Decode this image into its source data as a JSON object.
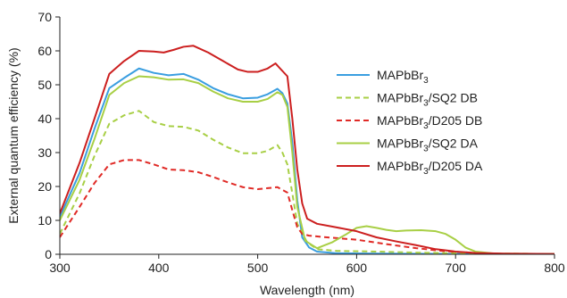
{
  "chart_data": {
    "type": "line",
    "title": "",
    "xlabel": "Wavelength (nm)",
    "ylabel": "External quantum efficiency (%)",
    "xlim": [
      300,
      800
    ],
    "ylim": [
      0,
      70
    ],
    "x_ticks": [
      "300",
      "400",
      "500",
      "600",
      "700",
      "800"
    ],
    "y_ticks": [
      "0",
      "10",
      "20",
      "30",
      "40",
      "50",
      "60",
      "70"
    ],
    "grid": false,
    "legend_position": "right",
    "series": [
      {
        "name_parts": [
          "MAPbBr",
          "3",
          ""
        ],
        "color": "#3a9ee0",
        "dash": "solid",
        "points": [
          [
            300,
            11
          ],
          [
            320,
            24
          ],
          [
            335,
            37
          ],
          [
            350,
            49
          ],
          [
            365,
            52
          ],
          [
            380,
            54.8
          ],
          [
            395,
            53.5
          ],
          [
            410,
            52.8
          ],
          [
            425,
            53.2
          ],
          [
            440,
            51.5
          ],
          [
            455,
            49
          ],
          [
            470,
            47.2
          ],
          [
            485,
            46
          ],
          [
            500,
            46.2
          ],
          [
            510,
            47.2
          ],
          [
            520,
            48.8
          ],
          [
            525,
            47.5
          ],
          [
            530,
            44.5
          ],
          [
            535,
            33
          ],
          [
            540,
            16
          ],
          [
            545,
            5
          ],
          [
            552,
            2
          ],
          [
            560,
            0.8
          ],
          [
            580,
            0.3
          ],
          [
            620,
            0.2
          ],
          [
            700,
            0.1
          ],
          [
            800,
            0.1
          ]
        ]
      },
      {
        "name_parts": [
          "MAPbBr",
          "3",
          "/SQ2 DB"
        ],
        "color": "#a8cf45",
        "dash": "dashed",
        "points": [
          [
            300,
            6
          ],
          [
            320,
            18
          ],
          [
            335,
            29
          ],
          [
            350,
            38.5
          ],
          [
            365,
            41
          ],
          [
            380,
            42.3
          ],
          [
            395,
            39
          ],
          [
            410,
            37.8
          ],
          [
            425,
            37.6
          ],
          [
            440,
            36.5
          ],
          [
            455,
            33.8
          ],
          [
            470,
            31.5
          ],
          [
            485,
            29.8
          ],
          [
            500,
            29.8
          ],
          [
            510,
            30.5
          ],
          [
            520,
            32.2
          ],
          [
            525,
            30
          ],
          [
            530,
            26.5
          ],
          [
            535,
            18
          ],
          [
            540,
            9
          ],
          [
            550,
            3.5
          ],
          [
            560,
            1.5
          ],
          [
            580,
            1
          ],
          [
            620,
            0.8
          ],
          [
            660,
            0.5
          ],
          [
            700,
            0.3
          ],
          [
            800,
            0.1
          ]
        ]
      },
      {
        "name_parts": [
          "MAPbBr",
          "3",
          "/D205 DB"
        ],
        "color": "#e02a26",
        "dash": "dashed",
        "points": [
          [
            300,
            5
          ],
          [
            320,
            14
          ],
          [
            335,
            21
          ],
          [
            350,
            26.5
          ],
          [
            365,
            27.8
          ],
          [
            380,
            27.8
          ],
          [
            395,
            26.5
          ],
          [
            410,
            25
          ],
          [
            425,
            24.8
          ],
          [
            440,
            24.2
          ],
          [
            455,
            22.8
          ],
          [
            470,
            21.2
          ],
          [
            485,
            19.8
          ],
          [
            500,
            19.2
          ],
          [
            510,
            19.5
          ],
          [
            520,
            19.8
          ],
          [
            530,
            18.2
          ],
          [
            535,
            13
          ],
          [
            540,
            8
          ],
          [
            545,
            6
          ],
          [
            552,
            5.5
          ],
          [
            570,
            5
          ],
          [
            600,
            4.3
          ],
          [
            630,
            3
          ],
          [
            660,
            1.8
          ],
          [
            690,
            0.9
          ],
          [
            720,
            0.4
          ],
          [
            750,
            0.1
          ],
          [
            800,
            0.1
          ]
        ]
      },
      {
        "name_parts": [
          "MAPbBr",
          "3",
          "/SQ2 DA"
        ],
        "color": "#a8cf45",
        "dash": "solid",
        "points": [
          [
            300,
            10
          ],
          [
            320,
            22
          ],
          [
            335,
            34
          ],
          [
            350,
            47
          ],
          [
            365,
            50.5
          ],
          [
            380,
            52.5
          ],
          [
            395,
            52.2
          ],
          [
            410,
            51.5
          ],
          [
            425,
            51.6
          ],
          [
            440,
            50.5
          ],
          [
            455,
            48
          ],
          [
            470,
            46
          ],
          [
            485,
            45
          ],
          [
            500,
            45
          ],
          [
            510,
            45.8
          ],
          [
            520,
            47.8
          ],
          [
            525,
            47
          ],
          [
            530,
            43.5
          ],
          [
            535,
            30
          ],
          [
            540,
            14
          ],
          [
            548,
            4
          ],
          [
            560,
            1.8
          ],
          [
            575,
            3.5
          ],
          [
            590,
            6
          ],
          [
            600,
            7.8
          ],
          [
            610,
            8.3
          ],
          [
            620,
            7.8
          ],
          [
            630,
            7.2
          ],
          [
            640,
            6.8
          ],
          [
            650,
            7
          ],
          [
            665,
            7.1
          ],
          [
            680,
            6.8
          ],
          [
            690,
            6
          ],
          [
            700,
            4.3
          ],
          [
            710,
            2
          ],
          [
            720,
            0.8
          ],
          [
            740,
            0.2
          ],
          [
            800,
            0.1
          ]
        ]
      },
      {
        "name_parts": [
          "MAPbBr",
          "3",
          "/D205 DA"
        ],
        "color": "#cc1f1f",
        "dash": "solid",
        "points": [
          [
            300,
            12
          ],
          [
            320,
            27
          ],
          [
            335,
            40
          ],
          [
            350,
            53.2
          ],
          [
            365,
            57
          ],
          [
            380,
            60
          ],
          [
            395,
            59.8
          ],
          [
            405,
            59.5
          ],
          [
            415,
            60.3
          ],
          [
            425,
            61.2
          ],
          [
            435,
            61.5
          ],
          [
            450,
            59.5
          ],
          [
            465,
            57
          ],
          [
            480,
            54.5
          ],
          [
            490,
            53.8
          ],
          [
            500,
            53.8
          ],
          [
            510,
            54.8
          ],
          [
            518,
            56.3
          ],
          [
            522,
            55
          ],
          [
            530,
            52.5
          ],
          [
            535,
            40
          ],
          [
            540,
            25
          ],
          [
            545,
            15
          ],
          [
            550,
            10.5
          ],
          [
            560,
            9
          ],
          [
            575,
            8.2
          ],
          [
            600,
            6.8
          ],
          [
            620,
            5
          ],
          [
            640,
            3.8
          ],
          [
            660,
            2.7
          ],
          [
            680,
            1.5
          ],
          [
            700,
            0.8
          ],
          [
            720,
            0.4
          ],
          [
            750,
            0.2
          ],
          [
            800,
            0.1
          ]
        ]
      }
    ]
  }
}
